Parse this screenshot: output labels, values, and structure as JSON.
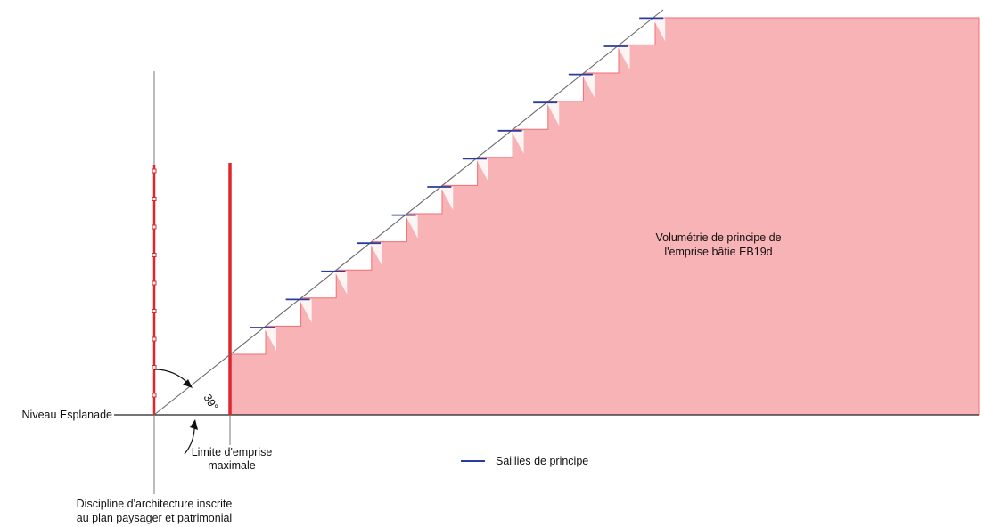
{
  "labels": {
    "volume_line1": "Volumétrie de principe de",
    "volume_line2": "l'emprise bâtie EB19d",
    "niveau": "Niveau Esplanade",
    "angle": "39°",
    "limite_line1": "Limite d'emprise",
    "limite_line2": "maximale",
    "saillies": "Saillies de principe",
    "discipline_line1": "Discipline d'architecture inscrite",
    "discipline_line2": "au plan paysager et patrimonial"
  },
  "colors": {
    "volume_fill": "#f7b3b5",
    "volume_edge": "#ef6f74",
    "limit_red": "#e0262b",
    "saillie_blue": "#2b3c9c",
    "line_gray": "#7a7a7a",
    "ink": "#111111"
  },
  "diagram": {
    "step_count": 12,
    "angle_degrees": 39
  }
}
